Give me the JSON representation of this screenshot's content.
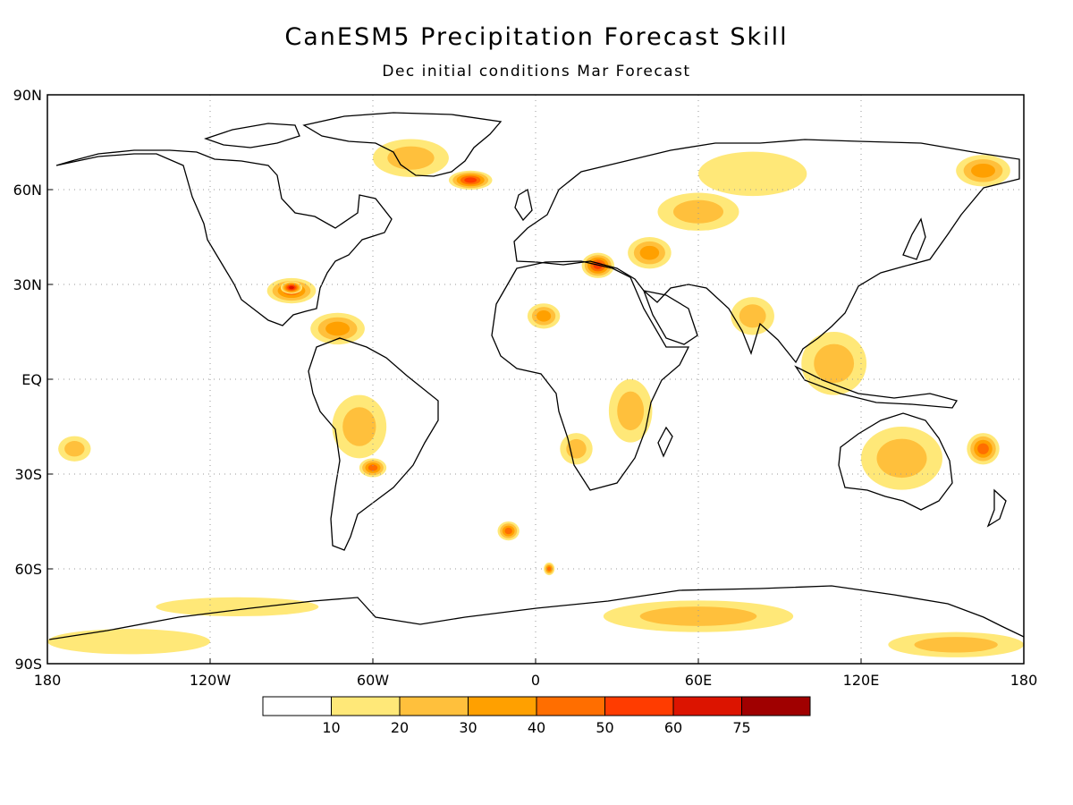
{
  "figure": {
    "title": "CanESM5 Precipitation Forecast Skill",
    "subtitle": "Dec initial conditions  Mar Forecast"
  },
  "axes": {
    "lat_ticks": [
      "90N",
      "60N",
      "30N",
      "EQ",
      "30S",
      "60S",
      "90S"
    ],
    "lon_ticks": [
      "180",
      "120W",
      "60W",
      "0",
      "60E",
      "120E",
      "180"
    ],
    "grid": "dotted"
  },
  "colorbar": {
    "labels": [
      "10",
      "20",
      "30",
      "40",
      "50",
      "60",
      "75"
    ],
    "colors": [
      "#ffffff",
      "#ffe878",
      "#ffc03c",
      "#ffa000",
      "#ff6e00",
      "#ff3c00",
      "#dc1400",
      "#a00000"
    ]
  },
  "chart_data": {
    "type": "heatmap",
    "lat_range": [
      -90,
      90
    ],
    "lon_range": [
      -180,
      180
    ],
    "levels": [
      10,
      20,
      30,
      40,
      50,
      60,
      75
    ],
    "regions": [
      {
        "lon": 42,
        "lat": 40,
        "rx": 8,
        "ry": 5,
        "level": 3
      },
      {
        "lon": 23,
        "lat": 36,
        "rx": 6,
        "ry": 4,
        "level": 5
      },
      {
        "lon": -90,
        "lat": 28,
        "rx": 9,
        "ry": 4,
        "level": 4
      },
      {
        "lon": -90,
        "lat": 29,
        "rx": 4,
        "ry": 2,
        "level": 6
      },
      {
        "lon": -73,
        "lat": 16,
        "rx": 10,
        "ry": 5,
        "level": 3
      },
      {
        "lon": -46,
        "lat": 70,
        "rx": 14,
        "ry": 6,
        "level": 2
      },
      {
        "lon": -24,
        "lat": 63,
        "rx": 8,
        "ry": 3,
        "level": 5
      },
      {
        "lon": 60,
        "lat": 53,
        "rx": 15,
        "ry": 6,
        "level": 2
      },
      {
        "lon": 80,
        "lat": 65,
        "rx": 20,
        "ry": 7,
        "level": 1
      },
      {
        "lon": 165,
        "lat": 66,
        "rx": 10,
        "ry": 5,
        "level": 3
      },
      {
        "lon": 3,
        "lat": 20,
        "rx": 6,
        "ry": 4,
        "level": 3
      },
      {
        "lon": 35,
        "lat": -10,
        "rx": 8,
        "ry": 10,
        "level": 2
      },
      {
        "lon": 15,
        "lat": -22,
        "rx": 6,
        "ry": 5,
        "level": 2
      },
      {
        "lon": -65,
        "lat": -15,
        "rx": 10,
        "ry": 10,
        "level": 2
      },
      {
        "lon": -60,
        "lat": -28,
        "rx": 5,
        "ry": 3,
        "level": 4
      },
      {
        "lon": 135,
        "lat": -25,
        "rx": 15,
        "ry": 10,
        "level": 2
      },
      {
        "lon": 165,
        "lat": -22,
        "rx": 6,
        "ry": 5,
        "level": 4
      },
      {
        "lon": -170,
        "lat": -22,
        "rx": 6,
        "ry": 4,
        "level": 2
      },
      {
        "lon": -10,
        "lat": -48,
        "rx": 4,
        "ry": 3,
        "level": 4
      },
      {
        "lon": 5,
        "lat": -60,
        "rx": 2,
        "ry": 2,
        "level": 4
      },
      {
        "lon": 60,
        "lat": -75,
        "rx": 35,
        "ry": 5,
        "level": 2
      },
      {
        "lon": 155,
        "lat": -84,
        "rx": 25,
        "ry": 4,
        "level": 2
      },
      {
        "lon": -150,
        "lat": -83,
        "rx": 30,
        "ry": 4,
        "level": 1
      },
      {
        "lon": -110,
        "lat": -72,
        "rx": 30,
        "ry": 3,
        "level": 1
      },
      {
        "lon": 110,
        "lat": 5,
        "rx": 12,
        "ry": 10,
        "level": 2
      },
      {
        "lon": 80,
        "lat": 20,
        "rx": 8,
        "ry": 6,
        "level": 2
      }
    ]
  }
}
